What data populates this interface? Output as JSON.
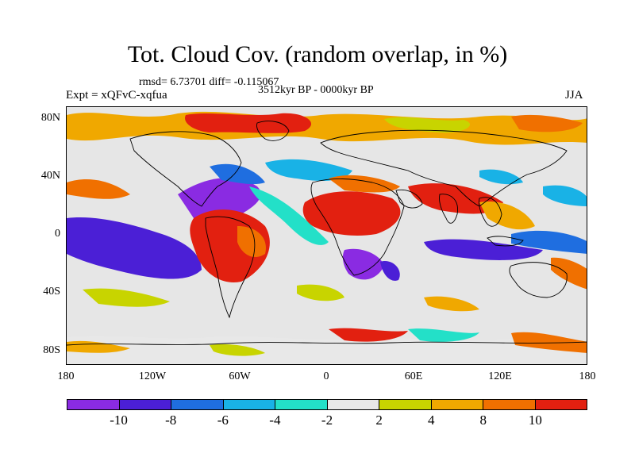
{
  "title": "Tot. Cloud Cov. (random overlap, in %)",
  "stats": "rmsd= 6.73701 diff= -0.115067",
  "period": "3512kyr BP - 0000kyr BP",
  "experiment": "Expt = xQFvC-xqfua",
  "season": "JJA",
  "lat_labels": [
    "80N",
    "40N",
    "0",
    "40S",
    "80S"
  ],
  "lon_labels": [
    "180",
    "120W",
    "60W",
    "0",
    "60E",
    "120E",
    "180"
  ],
  "colorbar": {
    "colors": [
      "#8a2be2",
      "#4b1fd6",
      "#1f6ee0",
      "#19b2e6",
      "#23e0c8",
      "#e8e8e8",
      "#c8d400",
      "#f0a800",
      "#f07000",
      "#e22010"
    ],
    "labels": [
      "-10",
      "-8",
      "-6",
      "-4",
      "-2",
      "2",
      "4",
      "8",
      "10"
    ]
  },
  "map_data": {
    "projection": "equirectangular",
    "lon_range": [
      -180,
      180
    ],
    "lat_range": [
      -90,
      90
    ],
    "background_color": "#e6e6e6"
  }
}
